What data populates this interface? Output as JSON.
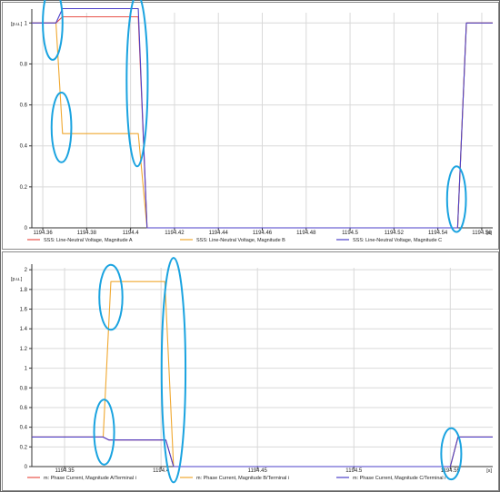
{
  "chart_data": [
    {
      "type": "line",
      "xlabel": "[s]",
      "ylabel": "[p.u.]",
      "xlim": [
        1194.355,
        1194.565
      ],
      "ylim": [
        0,
        1.05
      ],
      "grid": true,
      "legend_position": "bottom",
      "x_ticks": [
        1194.36,
        1194.38,
        1194.4,
        1194.42,
        1194.44,
        1194.46,
        1194.48,
        1194.5,
        1194.52,
        1194.54,
        1194.56
      ],
      "x_tick_labels": [
        "1194.36",
        "1194.38",
        "1194.4",
        "1194.42",
        "1194.44",
        "1194.46",
        "1194.48",
        "1194.5",
        "1194.52",
        "1194.54",
        "1194.56"
      ],
      "y_ticks": [
        0,
        0.2,
        0.4,
        0.6,
        0.8,
        1
      ],
      "y_tick_labels": [
        "0",
        "0.2",
        "0.4",
        "0.6",
        "0.8",
        "1"
      ],
      "series": [
        {
          "name": "SSS: Line-Neutral Voltage, Magnitude A",
          "color": "#e8524a",
          "x": [
            1194.355,
            1194.366,
            1194.369,
            1194.4035,
            1194.4075,
            1194.549,
            1194.553,
            1194.565
          ],
          "y": [
            1.0,
            1.0,
            1.03,
            1.03,
            0.0,
            0.0,
            1.0,
            1.0
          ]
        },
        {
          "name": "SSS: Line-Neutral Voltage, Magnitude B",
          "color": "#f0a830",
          "x": [
            1194.355,
            1194.366,
            1194.369,
            1194.4035,
            1194.4075,
            1194.549,
            1194.553,
            1194.565
          ],
          "y": [
            1.0,
            1.0,
            0.46,
            0.46,
            0.0,
            0.0,
            1.0,
            1.0
          ]
        },
        {
          "name": "SSS: Line-Neutral Voltage, Magnitude C",
          "color": "#4b3fc9",
          "x": [
            1194.355,
            1194.366,
            1194.369,
            1194.4035,
            1194.4075,
            1194.549,
            1194.553,
            1194.565
          ],
          "y": [
            1.0,
            1.0,
            1.07,
            1.07,
            0.0,
            0.0,
            1.0,
            1.0
          ]
        }
      ],
      "annotations": [
        {
          "shape": "ellipse",
          "x": 1194.3645,
          "y": 1.0,
          "rx": 0.0045,
          "ry": 0.18
        },
        {
          "shape": "ellipse",
          "x": 1194.3685,
          "y": 0.49,
          "rx": 0.0045,
          "ry": 0.17
        },
        {
          "shape": "ellipse",
          "x": 1194.403,
          "y": 0.72,
          "rx": 0.0048,
          "ry": 0.42
        },
        {
          "shape": "ellipse",
          "x": 1194.5485,
          "y": 0.14,
          "rx": 0.0043,
          "ry": 0.16
        }
      ]
    },
    {
      "type": "line",
      "xlabel": "[s]",
      "ylabel": "[p.u.]",
      "xlim": [
        1194.333,
        1194.572
      ],
      "ylim": [
        0,
        2.02
      ],
      "grid": true,
      "legend_position": "bottom",
      "x_ticks": [
        1194.35,
        1194.4,
        1194.45,
        1194.5,
        1194.55
      ],
      "x_tick_labels": [
        "1194.35",
        "1194.4",
        "1194.45",
        "1194.5",
        "1194.55"
      ],
      "y_ticks": [
        0,
        0.2,
        0.4,
        0.6,
        0.8,
        1,
        1.2,
        1.4,
        1.6,
        1.8,
        2
      ],
      "y_tick_labels": [
        "0",
        "0.2",
        "0.4",
        "0.6",
        "0.8",
        "1",
        "1.2",
        "1.4",
        "1.6",
        "1.8",
        "2"
      ],
      "series": [
        {
          "name": "m: Phase Current, Magnitude A/Terminal i",
          "color": "#e8524a",
          "x": [
            1194.333,
            1194.37,
            1194.373,
            1194.4025,
            1194.4065,
            1194.55,
            1194.554,
            1194.572
          ],
          "y": [
            0.3,
            0.3,
            0.27,
            0.27,
            0.0,
            0.0,
            0.3,
            0.3
          ]
        },
        {
          "name": "m: Phase Current, Magnitude B/Terminal i",
          "color": "#f0a830",
          "x": [
            1194.333,
            1194.37,
            1194.374,
            1194.402,
            1194.4065,
            1194.55,
            1194.554,
            1194.572
          ],
          "y": [
            0.3,
            0.3,
            1.88,
            1.88,
            0.0,
            0.0,
            0.3,
            0.3
          ]
        },
        {
          "name": "m: Phase Current, Magnitude C/Terminal i",
          "color": "#4b3fc9",
          "x": [
            1194.333,
            1194.37,
            1194.373,
            1194.4025,
            1194.4065,
            1194.55,
            1194.554,
            1194.572
          ],
          "y": [
            0.3,
            0.3,
            0.27,
            0.27,
            0.0,
            0.0,
            0.3,
            0.3
          ]
        }
      ],
      "annotations": [
        {
          "shape": "ellipse",
          "x": 1194.374,
          "y": 1.72,
          "rx": 0.006,
          "ry": 0.33
        },
        {
          "shape": "ellipse",
          "x": 1194.3705,
          "y": 0.35,
          "rx": 0.0052,
          "ry": 0.33
        },
        {
          "shape": "ellipse",
          "x": 1194.4065,
          "y": 0.98,
          "rx": 0.0062,
          "ry": 1.14
        },
        {
          "shape": "ellipse",
          "x": 1194.5505,
          "y": 0.13,
          "rx": 0.0052,
          "ry": 0.26
        }
      ]
    }
  ],
  "annotation_color": "#1aa3e0"
}
